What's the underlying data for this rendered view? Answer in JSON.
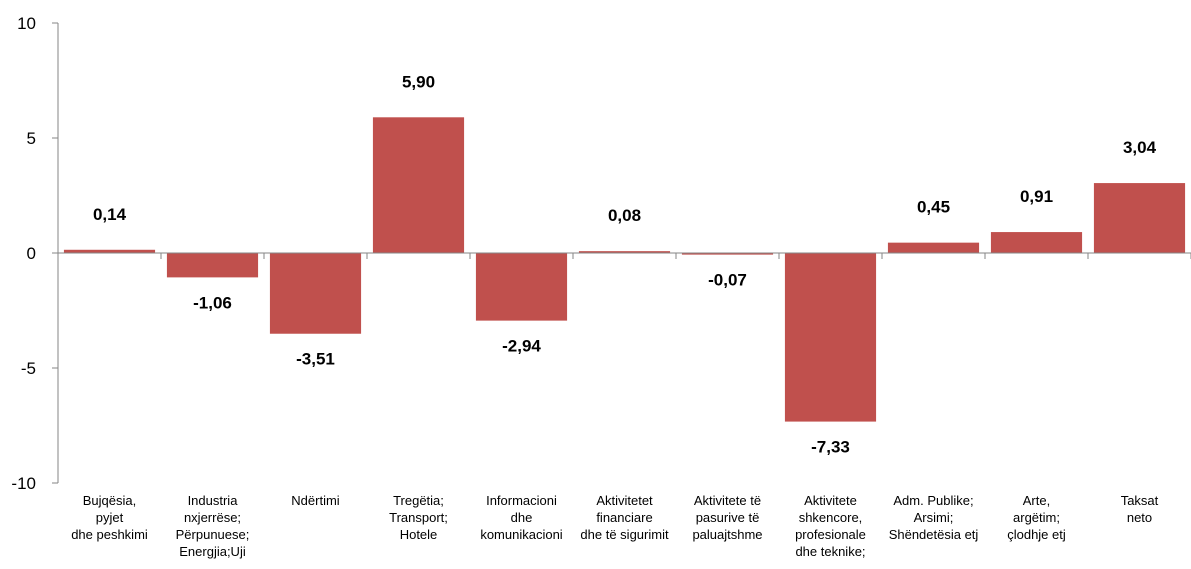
{
  "chart_data": {
    "type": "bar",
    "title": "",
    "xlabel": "",
    "ylabel": "",
    "ylim": [
      -10,
      10
    ],
    "yticks": [
      10,
      5,
      0,
      -5,
      -10
    ],
    "ytick_labels": [
      "10",
      "5",
      "0",
      "-5",
      "-10"
    ],
    "grid": false,
    "legend": "none",
    "bar_color": "#C0504D",
    "categories": [
      [
        "Bujqësia,",
        "pyjet",
        "dhe peshkimi"
      ],
      [
        "Industria",
        "nxjerrëse;",
        "Përpunuese;",
        "Energjia;Uji"
      ],
      [
        "Ndërtimi"
      ],
      [
        "Tregëtia;",
        "Transport;",
        "Hotele"
      ],
      [
        "Informacioni",
        "dhe",
        "komunikacioni"
      ],
      [
        "Aktivitetet",
        "financiare",
        "dhe të sigurimit"
      ],
      [
        "Aktivitete të",
        "pasurive të",
        "paluajtshme"
      ],
      [
        "Aktivitete",
        "shkencore,",
        "profesionale",
        "dhe teknike;"
      ],
      [
        "Adm. Publike;",
        "Arsimi;",
        "Shëndetësia etj"
      ],
      [
        "Arte,",
        "argëtim;",
        "çlodhje etj"
      ],
      [
        "Taksat",
        "neto"
      ]
    ],
    "values": [
      0.14,
      -1.06,
      -3.51,
      5.9,
      -2.94,
      0.08,
      -0.07,
      -7.33,
      0.45,
      0.91,
      3.04
    ],
    "value_labels": [
      "0,14",
      "-1,06",
      "-3,51",
      "5,90",
      "-2,94",
      "0,08",
      "-0,07",
      "-7,33",
      "0,45",
      "0,91",
      "3,04"
    ]
  }
}
